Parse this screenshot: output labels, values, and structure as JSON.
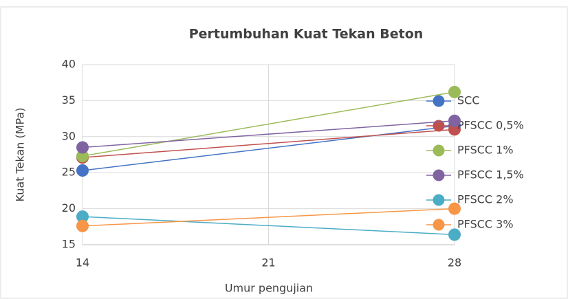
{
  "chart_data": {
    "type": "line",
    "title": "Pertumbuhan Kuat Tekan Beton",
    "x_label": "Umur pengujian",
    "y_label": "Kuat Tekan (MPa)",
    "x": [
      14,
      28
    ],
    "xlim": [
      14,
      28
    ],
    "xticks": [
      14,
      21,
      28
    ],
    "ylim": [
      15,
      40
    ],
    "yticks": [
      15,
      20,
      25,
      30,
      35,
      40
    ],
    "grid": true,
    "legend": "right",
    "series": [
      {
        "name": "SCC",
        "color": "#4472c4",
        "values": [
          25.3,
          31.5
        ]
      },
      {
        "name": "PFSCC 0,5%",
        "color": "#c0504d",
        "values": [
          27.1,
          31.0
        ]
      },
      {
        "name": "PFSCC 1%",
        "color": "#9bbb59",
        "values": [
          27.3,
          36.2
        ]
      },
      {
        "name": "PFSCC 1,5%",
        "color": "#8064a2",
        "values": [
          28.5,
          32.2
        ]
      },
      {
        "name": "PFSCC 2%",
        "color": "#4bacc6",
        "values": [
          18.9,
          16.4
        ]
      },
      {
        "name": "PFSCC 3%",
        "color": "#f79646",
        "values": [
          17.6,
          20.0
        ]
      }
    ]
  }
}
